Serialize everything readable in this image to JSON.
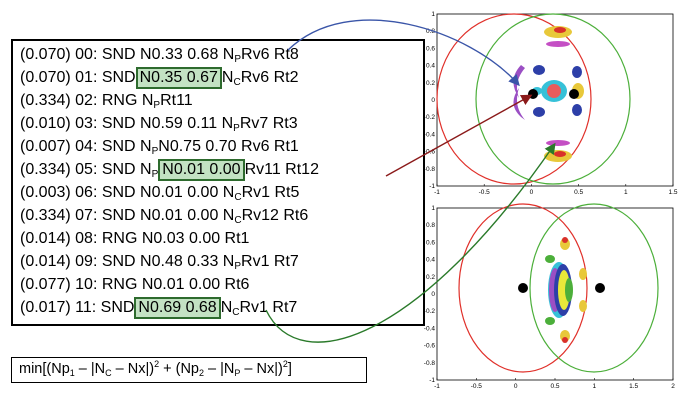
{
  "listing": [
    {
      "prefix": "(0.070) 00: SND N0.33 0.68 N",
      "sub": "P",
      "hl": "",
      "suffix": " Rv6 Rt8"
    },
    {
      "prefix": "(0.070) 01: SND ",
      "hl": "N0.35 0.67",
      "sub2_pre": " N",
      "sub": "C",
      "suffix": " Rv6 Rt2"
    },
    {
      "prefix": "(0.334) 02: RNG N",
      "sub": "P",
      "suffix": " Rt11"
    },
    {
      "prefix": "(0.010) 03: SND N0.59 0.11 N",
      "sub": "P",
      "suffix": " Rv7 Rt3"
    },
    {
      "prefix": "(0.007) 04: SND N",
      "sub": "P",
      "suffix": " N0.75 0.70 Rv6 Rt1"
    },
    {
      "prefix": "(0.334) 05: SND N",
      "sub": "P",
      "hl": "N0.01 0.00",
      "suffix": " Rv11 Rt12"
    },
    {
      "prefix": "(0.003) 06: SND N0.01 0.00 N",
      "sub": "C",
      "suffix": " Rv1 Rt5"
    },
    {
      "prefix": "(0.334) 07: SND N0.01 0.00 N",
      "sub": "C",
      "suffix": " Rv12 Rt6"
    },
    {
      "prefix": "(0.014) 08: RNG N0.03 0.00 Rt1",
      "sub": "",
      "suffix": ""
    },
    {
      "prefix": "(0.014) 09: SND N0.48 0.33 N",
      "sub": "P",
      "suffix": " Rv1 Rt7"
    },
    {
      "prefix": "(0.077) 10: RNG N0.01 0.00 Rt6",
      "sub": "",
      "suffix": ""
    },
    {
      "prefix": "(0.017) 11: SND ",
      "hl": "N0.69 0.68",
      "sub2_pre": " N",
      "sub": "C",
      "suffix": " Rv1 Rt7"
    }
  ],
  "formula": {
    "t1": "min[(Np",
    "s1": "1",
    "t2": " – |N",
    "s2": "C",
    "t3": " – Nx|)",
    "p1": "2",
    "t4": " + (Np",
    "s3": "2",
    "t5": " – |N",
    "s4": "P",
    "t6": " – Nx|)",
    "p2": "2",
    "t7": "]"
  },
  "plot_top": {
    "x_ticks": [
      "-1",
      "-0.5",
      "0",
      "0.5",
      "1",
      "1.5"
    ],
    "y_ticks": [
      "1",
      "0.8",
      "0.6",
      "0.4",
      "0.2",
      "0",
      "-0.2",
      "-0.4",
      "-0.6",
      "-0.8",
      "-1"
    ]
  },
  "plot_bottom": {
    "x_ticks": [
      "-1",
      "-0.5",
      "0",
      "0.5",
      "1",
      "1.5",
      "2"
    ],
    "y_ticks": [
      "1",
      "0.8",
      "0.6",
      "0.4",
      "0.2",
      "0",
      "-0.2",
      "-0.4",
      "-0.6",
      "-0.8",
      "-1"
    ]
  },
  "colors": {
    "arrow_blue": "#3a55a8",
    "arrow_red": "#8b1a1a",
    "arrow_green": "#2a7a2a",
    "circle_red": "#e0302a",
    "circle_green": "#4caf3a",
    "highlight": "#c3e2c3"
  }
}
